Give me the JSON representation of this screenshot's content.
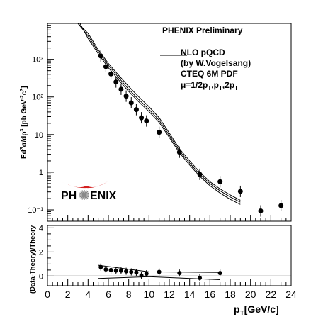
{
  "chart_data": {
    "type": "scatter",
    "top_panel": {
      "yscale": "log",
      "ylabel_parts": {
        "a": "Ed",
        "b": "3",
        "c": "σ/dp",
        "d": "3",
        "e": " [pb GeV",
        "f": "-2",
        "g": "c",
        "h": "3",
        "i": "]"
      },
      "ylim": [
        0.05,
        9000
      ],
      "ytick_labels": [
        "10⁻¹",
        "1",
        "10",
        "10²",
        "10³"
      ],
      "ytick_values": [
        0.1,
        1,
        10,
        100,
        1000
      ],
      "header": "PHENIX Preliminary",
      "legend": {
        "line1": "NLO pQCD",
        "line2": "(by W.Vogelsang)",
        "line3": "CTEQ 6M PDF",
        "mu_text": "μ=1/2p",
        "mu_sub1": "T",
        "mu_mid1": ",p",
        "mu_sub2": "T",
        "mu_mid2": ",2p",
        "mu_sub3": "T"
      },
      "logo_text": {
        "left": "PH",
        "right": "ENIX"
      },
      "data_points": [
        {
          "x": 5.25,
          "y": 1230
        },
        {
          "x": 5.75,
          "y": 640
        },
        {
          "x": 6.25,
          "y": 410
        },
        {
          "x": 6.75,
          "y": 250
        },
        {
          "x": 7.25,
          "y": 160
        },
        {
          "x": 7.75,
          "y": 105
        },
        {
          "x": 8.25,
          "y": 70
        },
        {
          "x": 8.75,
          "y": 46
        },
        {
          "x": 9.25,
          "y": 28
        },
        {
          "x": 9.75,
          "y": 23
        },
        {
          "x": 11.0,
          "y": 11.5
        },
        {
          "x": 13.0,
          "y": 3.4
        },
        {
          "x": 15.0,
          "y": 0.88
        },
        {
          "x": 17.0,
          "y": 0.56
        },
        {
          "x": 19.0,
          "y": 0.31
        },
        {
          "x": 21.0,
          "y": 0.094
        },
        {
          "x": 23.0,
          "y": 0.13
        }
      ],
      "theory_curves": [
        {
          "name": "μ=1/2pT",
          "x": [
            3.0,
            4,
            5,
            6,
            7,
            8,
            9,
            10,
            11,
            12,
            13,
            14,
            15,
            16,
            17,
            18,
            19
          ],
          "y": [
            9000,
            4900,
            1800,
            780,
            380,
            190,
            100,
            55,
            28,
            11,
            4.2,
            2.0,
            1.0,
            0.56,
            0.36,
            0.25,
            0.18
          ]
        },
        {
          "name": "μ=pT",
          "x": [
            3.0,
            4,
            5,
            6,
            7,
            8,
            9,
            10,
            11,
            12,
            13,
            14,
            15,
            16,
            17,
            18,
            19
          ],
          "y": [
            9000,
            4200,
            1600,
            690,
            330,
            160,
            85,
            47,
            24,
            9.6,
            3.7,
            1.75,
            0.88,
            0.5,
            0.32,
            0.22,
            0.16
          ]
        },
        {
          "name": "μ=2pT",
          "x": [
            3.2,
            4,
            5,
            6,
            7,
            8,
            9,
            10,
            11,
            12,
            13,
            14,
            15,
            16,
            17,
            18,
            19
          ],
          "y": [
            9000,
            3600,
            1400,
            600,
            285,
            140,
            74,
            41,
            21,
            8.4,
            3.3,
            1.55,
            0.78,
            0.44,
            0.28,
            0.19,
            0.14
          ]
        }
      ]
    },
    "bottom_panel": {
      "ylabel": "(Data-Theory)/Theory",
      "ylim": [
        -0.8,
        4.2
      ],
      "ytick_labels": [
        "0",
        "2",
        "4"
      ],
      "ytick_values": [
        0,
        2,
        4
      ],
      "data_points": [
        {
          "x": 5.25,
          "y": 0.75
        },
        {
          "x": 5.75,
          "y": 0.55
        },
        {
          "x": 6.25,
          "y": 0.5
        },
        {
          "x": 6.75,
          "y": 0.45
        },
        {
          "x": 7.25,
          "y": 0.45
        },
        {
          "x": 7.75,
          "y": 0.4
        },
        {
          "x": 8.25,
          "y": 0.35
        },
        {
          "x": 8.75,
          "y": 0.3
        },
        {
          "x": 9.25,
          "y": 0.05
        },
        {
          "x": 9.75,
          "y": 0.2
        },
        {
          "x": 11.0,
          "y": 0.35
        },
        {
          "x": 13.0,
          "y": 0.25
        },
        {
          "x": 15.0,
          "y": -0.15
        },
        {
          "x": 17.0,
          "y": 0.25
        }
      ]
    },
    "xaxis": {
      "xlim": [
        0,
        24
      ],
      "tick_labels": [
        "0",
        "2",
        "4",
        "6",
        "8",
        "10",
        "12",
        "14",
        "16",
        "18",
        "20",
        "22",
        "24"
      ],
      "tick_values": [
        0,
        2,
        4,
        6,
        8,
        10,
        12,
        14,
        16,
        18,
        20,
        22,
        24
      ],
      "label_p": "p",
      "label_sub": "T",
      "label_rest": "[GeV/c]"
    },
    "colors": {
      "markers": "#000000",
      "logo_red": "#d42020"
    }
  }
}
